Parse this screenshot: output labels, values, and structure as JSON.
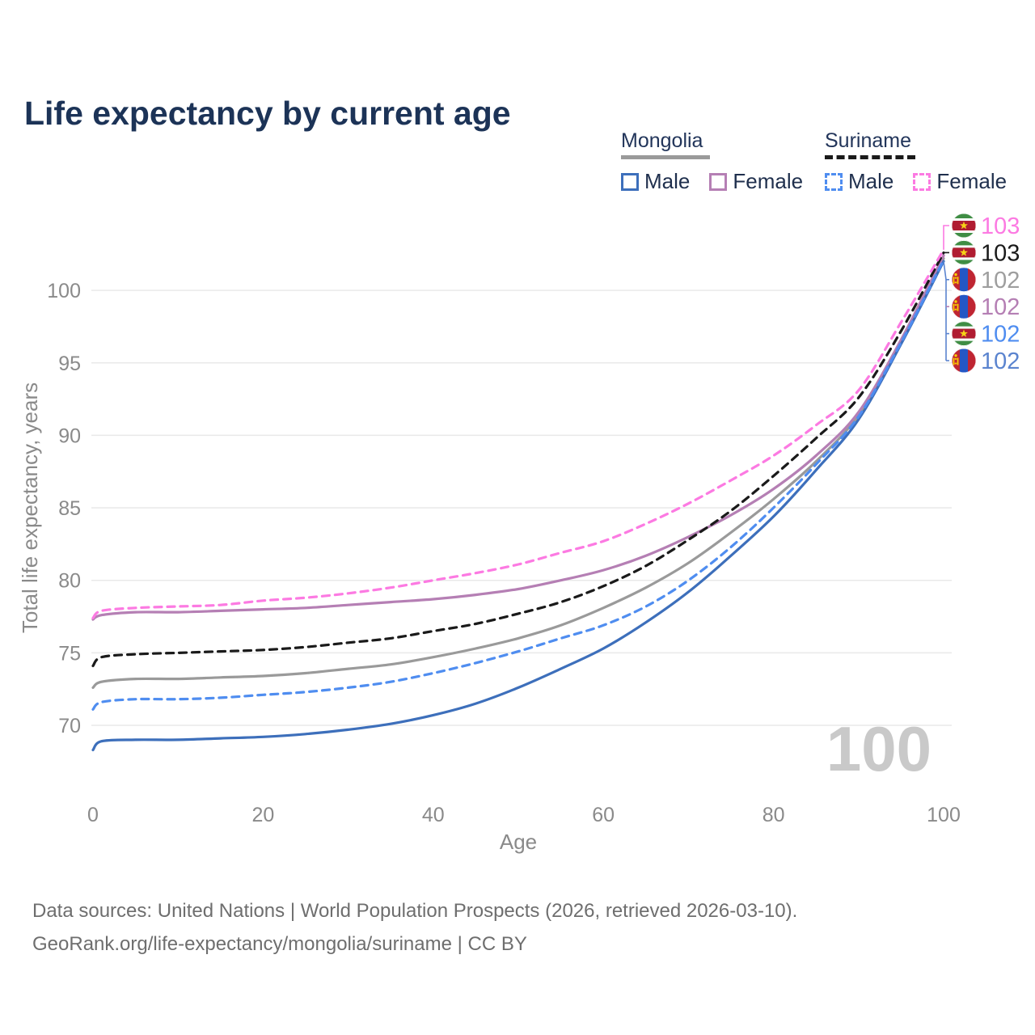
{
  "title": "Life expectancy by current age",
  "legend": {
    "groups": [
      {
        "label": "Mongolia",
        "line_style": "solid",
        "line_color": "#9a9a9a",
        "items": [
          {
            "label": "Male",
            "color": "#3d6fbb",
            "dash": "solid"
          },
          {
            "label": "Female",
            "color": "#b57fb4",
            "dash": "solid"
          }
        ]
      },
      {
        "label": "Suriname",
        "line_style": "dashed",
        "line_color": "#1a1a1a",
        "items": [
          {
            "label": "Male",
            "color": "#4f8df0",
            "dash": "dashed"
          },
          {
            "label": "Female",
            "color": "#fc7ae2",
            "dash": "dashed"
          }
        ]
      }
    ]
  },
  "chart_data": {
    "type": "line",
    "title": "Life expectancy by current age",
    "xlabel": "Age",
    "ylabel": "Total life expectancy, years",
    "xlim": [
      0,
      100
    ],
    "ylim": [
      66,
      104
    ],
    "x_ticks": [
      0,
      20,
      40,
      60,
      80,
      100
    ],
    "y_ticks": [
      70,
      75,
      80,
      85,
      90,
      95,
      100
    ],
    "grid": true,
    "legend_position": "top-right",
    "x": [
      0,
      1,
      5,
      10,
      15,
      20,
      25,
      30,
      35,
      40,
      45,
      50,
      55,
      60,
      65,
      70,
      75,
      80,
      85,
      90,
      95,
      100
    ],
    "series": [
      {
        "name": "Mongolia Both sexes",
        "country": "Mongolia",
        "sex": "both",
        "color": "#9a9a9a",
        "dash": "solid",
        "values": [
          72.6,
          73.0,
          73.2,
          73.2,
          73.3,
          73.4,
          73.6,
          73.9,
          74.2,
          74.7,
          75.3,
          76.0,
          76.9,
          78.1,
          79.5,
          81.2,
          83.3,
          85.6,
          88.2,
          91.4,
          96.5,
          102.2
        ]
      },
      {
        "name": "Mongolia Female",
        "country": "Mongolia",
        "sex": "female",
        "color": "#b57fb4",
        "dash": "solid",
        "values": [
          77.3,
          77.6,
          77.8,
          77.8,
          77.9,
          78.0,
          78.1,
          78.3,
          78.5,
          78.7,
          79.0,
          79.4,
          80.0,
          80.7,
          81.7,
          83.0,
          84.5,
          86.3,
          88.6,
          91.6,
          96.6,
          102.4
        ]
      },
      {
        "name": "Mongolia Male",
        "country": "Mongolia",
        "sex": "male",
        "color": "#3d6fbb",
        "dash": "solid",
        "values": [
          68.3,
          68.9,
          69.0,
          69.0,
          69.1,
          69.2,
          69.4,
          69.7,
          70.1,
          70.7,
          71.5,
          72.6,
          73.9,
          75.3,
          77.1,
          79.2,
          81.7,
          84.4,
          87.6,
          91.1,
          96.3,
          102.0
        ]
      },
      {
        "name": "Suriname Male",
        "country": "Suriname",
        "sex": "male",
        "color": "#4f8df0",
        "dash": "dashed",
        "values": [
          71.1,
          71.6,
          71.8,
          71.8,
          71.9,
          72.1,
          72.3,
          72.6,
          73.0,
          73.6,
          74.3,
          75.1,
          76.0,
          76.9,
          78.2,
          80.0,
          82.3,
          85.0,
          88.0,
          91.3,
          96.4,
          102.1
        ]
      },
      {
        "name": "Suriname Both sexes",
        "country": "Suriname",
        "sex": "both",
        "color": "#1a1a1a",
        "dash": "dashed",
        "values": [
          74.1,
          74.7,
          74.9,
          75.0,
          75.1,
          75.2,
          75.4,
          75.7,
          76.0,
          76.5,
          77.0,
          77.7,
          78.5,
          79.6,
          81.0,
          82.8,
          84.8,
          87.2,
          89.8,
          92.6,
          97.2,
          102.6
        ]
      },
      {
        "name": "Suriname Female",
        "country": "Suriname",
        "sex": "female",
        "color": "#fc7ae2",
        "dash": "dashed",
        "values": [
          77.4,
          77.9,
          78.1,
          78.2,
          78.3,
          78.6,
          78.8,
          79.1,
          79.5,
          80.0,
          80.5,
          81.1,
          81.9,
          82.7,
          83.9,
          85.3,
          86.9,
          88.6,
          90.7,
          93.1,
          97.8,
          102.8
        ]
      }
    ],
    "end_labels": [
      {
        "value": "103",
        "country": "Suriname",
        "sex": "female",
        "flag": "suriname",
        "color": "#fc7ae2"
      },
      {
        "value": "103",
        "country": "Suriname",
        "sex": "both",
        "flag": "suriname",
        "color": "#1a1a1a"
      },
      {
        "value": "102",
        "country": "Mongolia",
        "sex": "both",
        "flag": "mongolia",
        "color": "#9e9e9e"
      },
      {
        "value": "102",
        "country": "Mongolia",
        "sex": "female",
        "flag": "mongolia",
        "color": "#b57fb4"
      },
      {
        "value": "102",
        "country": "Suriname",
        "sex": "male",
        "flag": "suriname",
        "color": "#4f8df0"
      },
      {
        "value": "102",
        "country": "Mongolia",
        "sex": "male",
        "flag": "mongolia",
        "color": "#5b84cf"
      }
    ]
  },
  "watermark": "100",
  "colors": {
    "title": "#1c3357",
    "axis_text": "#8a8a8a",
    "gridline": "#e9e9e9",
    "watermark": "#c9c9c9",
    "footer_text": "#6e6e6e",
    "mongolia_flag_red": "#bf2532",
    "mongolia_flag_blue": "#2457c5",
    "mongolia_flag_yellow": "#f9cf02",
    "suriname_flag_green": "#3f8d44",
    "suriname_flag_red": "#b01c31",
    "suriname_flag_star": "#f5d216"
  },
  "footer": {
    "line1": "Data sources: United Nations | World Population Prospects (2026, retrieved 2026-03-10).",
    "line2": "GeoRank.org/life-expectancy/mongolia/suriname | CC BY"
  }
}
